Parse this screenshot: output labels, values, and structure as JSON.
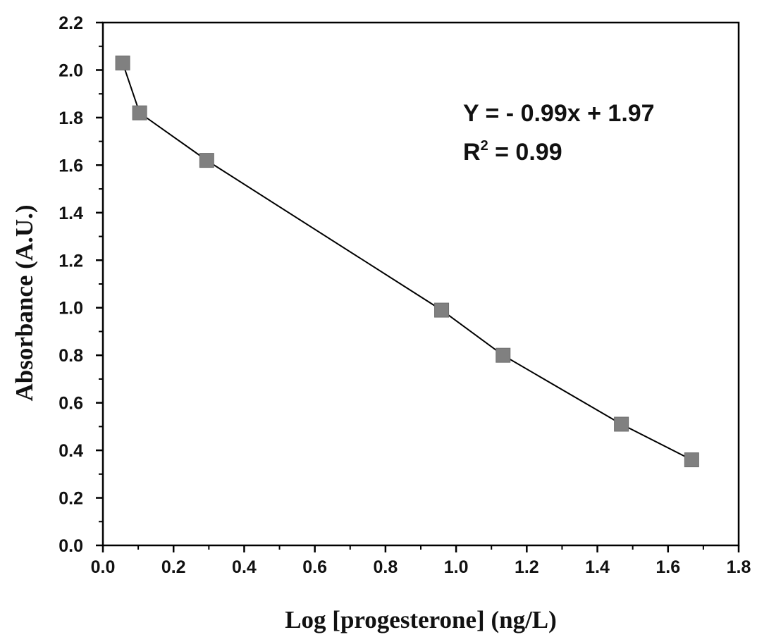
{
  "chart_data": {
    "type": "line",
    "title": "",
    "xlabel": "Log [progesterone] (ng/L)",
    "ylabel": "Absorbance (A.U.)",
    "xlim": [
      0.0,
      1.8
    ],
    "ylim": [
      0.0,
      2.2
    ],
    "xticks": [
      "0.0",
      "0.2",
      "0.4",
      "0.6",
      "0.8",
      "1.0",
      "1.2",
      "1.4",
      "1.6",
      "1.8"
    ],
    "yticks": [
      "0.0",
      "0.2",
      "0.4",
      "0.6",
      "0.8",
      "1.0",
      "1.2",
      "1.4",
      "1.6",
      "1.8",
      "2.0",
      "2.2"
    ],
    "series": [
      {
        "x": [
          0.056,
          0.104,
          0.294,
          0.959,
          1.133,
          1.468,
          1.667
        ],
        "y": [
          2.03,
          1.82,
          1.62,
          0.99,
          0.8,
          0.51,
          0.36
        ]
      }
    ],
    "marker": "square",
    "marker_color": "#808080",
    "line_color": "#000000",
    "grid": false,
    "annotations": {
      "equation": "Y  = - 0.99x + 1.97",
      "r2_prefix": "R",
      "r2_sup": "2",
      "r2_suffix": " = 0.99"
    }
  }
}
